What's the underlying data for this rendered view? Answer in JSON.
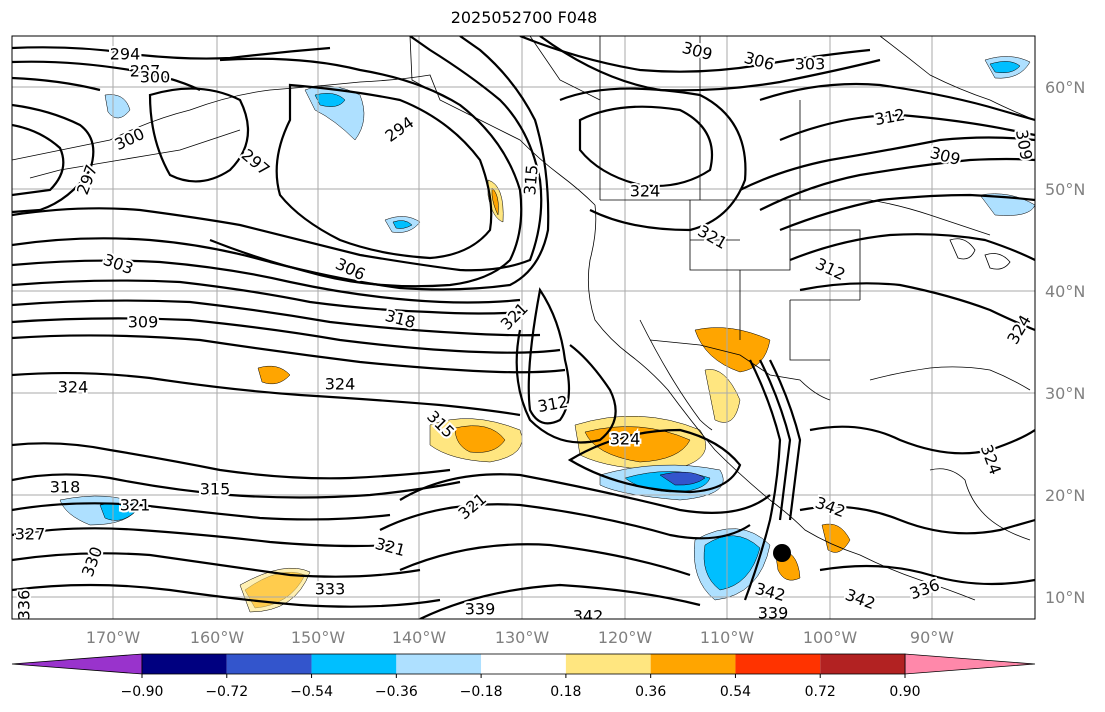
{
  "title": "2025052700 F048",
  "lon_labels": [
    "170°W",
    "160°W",
    "150°W",
    "140°W",
    "130°W",
    "120°W",
    "110°W",
    "100°W",
    "90°W"
  ],
  "lat_labels": [
    "60°N",
    "50°N",
    "40°N",
    "30°N",
    "20°N",
    "10°N"
  ],
  "colorbar": {
    "colors": [
      "#9933cc",
      "#000080",
      "#3355cc",
      "#00bfff",
      "#aee0ff",
      "#ffffff",
      "#ffe680",
      "#ffa500",
      "#ff3300",
      "#b22222",
      "#ff88aa"
    ],
    "tick_labels": [
      "−0.90",
      "−0.72",
      "−0.54",
      "−0.36",
      "−0.18",
      "0.18",
      "0.36",
      "0.54",
      "0.72",
      "0.90"
    ]
  },
  "contour_labels": [
    {
      "text": "294",
      "name": "contour-label-294-nw"
    },
    {
      "text": "297",
      "name": "contour-label-297-nw"
    },
    {
      "text": "300",
      "name": "contour-label-300-nw"
    },
    {
      "text": "300",
      "name": "contour-label-300-w"
    },
    {
      "text": "297",
      "name": "contour-label-297-w"
    },
    {
      "text": "297",
      "name": "contour-label-297-gulf"
    },
    {
      "text": "294",
      "name": "contour-label-294-gulf"
    },
    {
      "text": "303",
      "name": "contour-label-303-w"
    },
    {
      "text": "306",
      "name": "contour-label-306-c"
    },
    {
      "text": "309",
      "name": "contour-label-309-w"
    },
    {
      "text": "318",
      "name": "contour-label-318-c"
    },
    {
      "text": "321",
      "name": "contour-label-321-coast"
    },
    {
      "text": "315",
      "name": "contour-label-315-coast"
    },
    {
      "text": "324",
      "name": "contour-label-324-w"
    },
    {
      "text": "324",
      "name": "contour-label-324-c"
    },
    {
      "text": "315",
      "name": "contour-label-315-c"
    },
    {
      "text": "312",
      "name": "contour-label-312-c"
    },
    {
      "text": "324",
      "name": "contour-label-324-baja"
    },
    {
      "text": "318",
      "name": "contour-label-318-sw"
    },
    {
      "text": "321",
      "name": "contour-label-321-sw"
    },
    {
      "text": "315",
      "name": "contour-label-315-s"
    },
    {
      "text": "327",
      "name": "contour-label-327-sw"
    },
    {
      "text": "330",
      "name": "contour-label-330-sw"
    },
    {
      "text": "321",
      "name": "contour-label-321-s"
    },
    {
      "text": "321",
      "name": "contour-label-321-s2"
    },
    {
      "text": "333",
      "name": "contour-label-333-s"
    },
    {
      "text": "336",
      "name": "contour-label-336-sw"
    },
    {
      "text": "339",
      "name": "contour-label-339-s"
    },
    {
      "text": "342",
      "name": "contour-label-342-s"
    },
    {
      "text": "342",
      "name": "contour-label-342-mx"
    },
    {
      "text": "342",
      "name": "contour-label-342-se"
    },
    {
      "text": "342",
      "name": "contour-label-342-se2"
    },
    {
      "text": "336",
      "name": "contour-label-336-se"
    },
    {
      "text": "339",
      "name": "contour-label-339-se"
    },
    {
      "text": "309",
      "name": "contour-label-309-ne"
    },
    {
      "text": "306",
      "name": "contour-label-306-ne"
    },
    {
      "text": "303",
      "name": "contour-label-303-ne"
    },
    {
      "text": "312",
      "name": "contour-label-312-ne"
    },
    {
      "text": "309",
      "name": "contour-label-309-e"
    },
    {
      "text": "309",
      "name": "contour-label-309-fe"
    },
    {
      "text": "324",
      "name": "contour-label-324-us"
    },
    {
      "text": "321",
      "name": "contour-label-321-us"
    },
    {
      "text": "312",
      "name": "contour-label-312-us"
    },
    {
      "text": "324",
      "name": "contour-label-324-e"
    },
    {
      "text": "324",
      "name": "contour-label-324-gulfmx"
    }
  ]
}
